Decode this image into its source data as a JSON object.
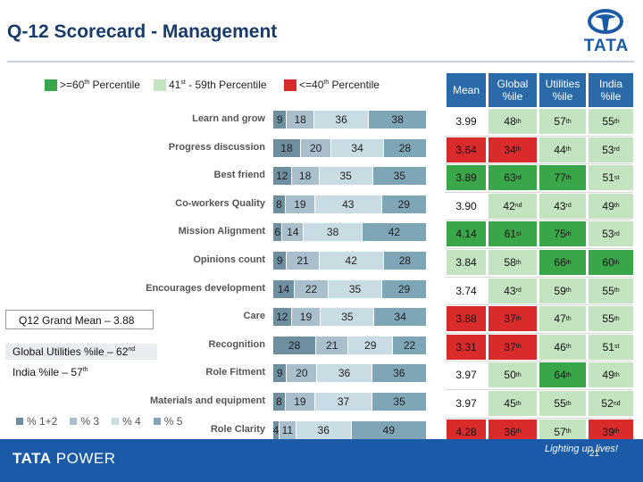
{
  "title": "Q-12 Scorecard - Management",
  "logo": {
    "word": "TATA"
  },
  "legend_top": [
    {
      "label_pre": ">=60",
      "label_sup": "th",
      "label_post": " Percentile",
      "color": "#3aa64a"
    },
    {
      "label_pre": "41",
      "label_sup": "st",
      "label_post": " - 59th Percentile",
      "color": "#c4e3c0"
    },
    {
      "label_pre": "<=40",
      "label_sup": "th",
      "label_post": " Percentile",
      "color": "#d92b2b"
    }
  ],
  "table": {
    "headers": [
      "Mean",
      "Global %ile",
      "Utilities %ile",
      "India %ile"
    ],
    "rows": [
      {
        "label": "Learn and grow",
        "bars": [
          9,
          18,
          36,
          38
        ],
        "mean": "3.99",
        "global": [
          "48",
          "th"
        ],
        "utilities": [
          "57",
          "th"
        ],
        "india": [
          "55",
          "th"
        ],
        "colors": [
          "",
          "lg",
          "lg",
          "lg"
        ]
      },
      {
        "label": "Progress discussion",
        "bars": [
          18,
          20,
          34,
          28
        ],
        "mean": "3.64",
        "global": [
          "34",
          "th"
        ],
        "utilities": [
          "44",
          "th"
        ],
        "india": [
          "53",
          "rd"
        ],
        "colors": [
          "r",
          "r",
          "lg",
          "lg"
        ]
      },
      {
        "label": "Best friend",
        "bars": [
          12,
          18,
          35,
          35
        ],
        "mean": "3.89",
        "global": [
          "63",
          "rd"
        ],
        "utilities": [
          "77",
          "th"
        ],
        "india": [
          "51",
          "st"
        ],
        "colors": [
          "g",
          "g",
          "g",
          "lg"
        ]
      },
      {
        "label": "Co-workers Quality",
        "bars": [
          8,
          19,
          43,
          29
        ],
        "mean": "3.90",
        "global": [
          "42",
          "nd"
        ],
        "utilities": [
          "43",
          "rd"
        ],
        "india": [
          "49",
          "th"
        ],
        "colors": [
          "",
          "lg",
          "lg",
          "lg"
        ]
      },
      {
        "label": "Mission Alignment",
        "bars": [
          6,
          14,
          38,
          42
        ],
        "mean": "4.14",
        "global": [
          "61",
          "st"
        ],
        "utilities": [
          "75",
          "th"
        ],
        "india": [
          "53",
          "rd"
        ],
        "colors": [
          "g",
          "g",
          "g",
          "lg"
        ]
      },
      {
        "label": "Opinions count",
        "bars": [
          9,
          21,
          42,
          28
        ],
        "mean": "3.84",
        "global": [
          "58",
          "th"
        ],
        "utilities": [
          "66",
          "th"
        ],
        "india": [
          "60",
          "th"
        ],
        "colors": [
          "lg",
          "lg",
          "g",
          "g"
        ]
      },
      {
        "label": "Encourages development",
        "bars": [
          14,
          22,
          35,
          29
        ],
        "mean": "3.74",
        "global": [
          "43",
          "rd"
        ],
        "utilities": [
          "59",
          "th"
        ],
        "india": [
          "55",
          "th"
        ],
        "colors": [
          "",
          "lg",
          "lg",
          "lg"
        ]
      },
      {
        "label": "Care",
        "bars": [
          12,
          19,
          35,
          34
        ],
        "mean": "3.88",
        "global": [
          "37",
          "th"
        ],
        "utilities": [
          "47",
          "th"
        ],
        "india": [
          "55",
          "th"
        ],
        "colors": [
          "r",
          "r",
          "lg",
          "lg"
        ]
      },
      {
        "label": "Recognition",
        "bars": [
          28,
          21,
          29,
          22
        ],
        "mean": "3.31",
        "global": [
          "37",
          "th"
        ],
        "utilities": [
          "46",
          "th"
        ],
        "india": [
          "51",
          "st"
        ],
        "colors": [
          "r",
          "r",
          "lg",
          "lg"
        ]
      },
      {
        "label": "Role Fitment",
        "bars": [
          9,
          20,
          36,
          36
        ],
        "mean": "3.97",
        "global": [
          "50",
          "th"
        ],
        "utilities": [
          "64",
          "th"
        ],
        "india": [
          "49",
          "th"
        ],
        "colors": [
          "",
          "lg",
          "g",
          "lg"
        ]
      },
      {
        "label": "Materials and equipment",
        "bars": [
          8,
          19,
          37,
          35
        ],
        "mean": "3.97",
        "global": [
          "45",
          "th"
        ],
        "utilities": [
          "55",
          "th"
        ],
        "india": [
          "52",
          "nd"
        ],
        "colors": [
          "",
          "lg",
          "lg",
          "lg"
        ]
      },
      {
        "label": "Role Clarity",
        "bars": [
          4,
          11,
          36,
          49
        ],
        "mean": "4.28",
        "global": [
          "36",
          "th"
        ],
        "utilities": [
          "57",
          "th"
        ],
        "india": [
          "39",
          "th"
        ],
        "colors": [
          "r",
          "r",
          "lg",
          "r"
        ]
      }
    ]
  },
  "summary": {
    "grand_mean": "Q12 Grand Mean – 3.88",
    "global_utilities_pre": "Global Utilities %ile – 62",
    "global_utilities_sup": "nd",
    "india": "India %ile –  57",
    "india_sup": "th"
  },
  "legend_bottom": [
    {
      "label": "% 1+2",
      "color": "#6e8fa0"
    },
    {
      "label": "% 3",
      "color": "#a9bfcc"
    },
    {
      "label": "% 4",
      "color": "#c9dbe3"
    },
    {
      "label": "% 5",
      "color": "#7fa6b6"
    }
  ],
  "footer": {
    "brand": "TATA",
    "brand_thin": " POWER",
    "tagline": "Lighting up lives!",
    "page": "21"
  }
}
